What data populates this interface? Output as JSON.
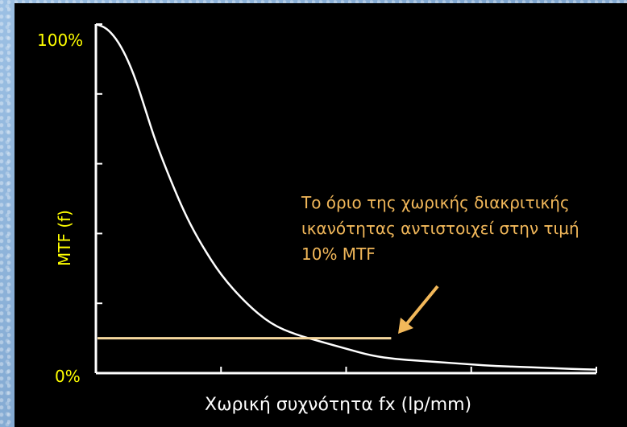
{
  "chart_data": {
    "type": "line",
    "ylabel": "MTF (f)",
    "xlabel": "Χωρική συχνότητα fx (lp/mm)",
    "y_tick_labels": [
      "100%",
      "0%"
    ],
    "ylim": [
      0,
      100
    ],
    "xlim": [
      0,
      1
    ],
    "series": [
      {
        "x": [
          0,
          0.02,
          0.04,
          0.06,
          0.08,
          0.1,
          0.12,
          0.15,
          0.18,
          0.21,
          0.25,
          0.3,
          0.35,
          0.4,
          0.45,
          0.5,
          0.55,
          0.6,
          0.65,
          0.7,
          0.75,
          0.8,
          0.85,
          0.9,
          0.95,
          1.0
        ],
        "y": [
          100,
          99,
          96,
          91,
          84,
          75,
          66,
          55,
          45,
          37,
          28,
          20,
          14,
          11,
          9,
          7,
          5,
          4,
          3.5,
          3,
          2.5,
          2,
          1.8,
          1.5,
          1.2,
          1
        ]
      }
    ],
    "reference_line": {
      "y": 10,
      "x_end": 0.59,
      "color": "#f5d79e"
    },
    "annotation": {
      "lines": [
        "Το όριο της χωρικής διακριτικής",
        "ικανότητας αντιστοιχεί στην τιμή",
        "10% MTF"
      ],
      "color": "#f2b85a"
    }
  }
}
